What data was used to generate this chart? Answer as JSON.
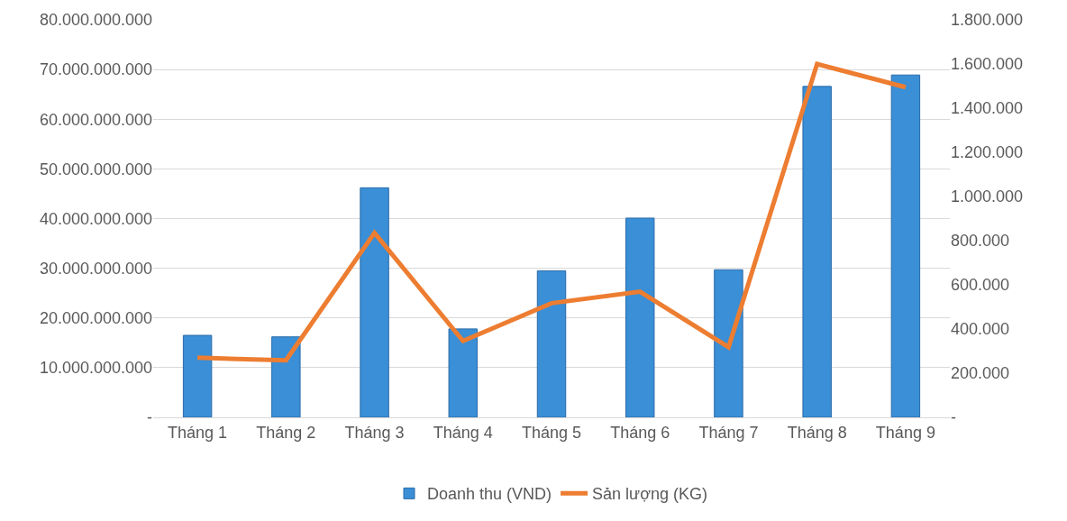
{
  "chart_data": {
    "type": "bar",
    "categories": [
      "Tháng 1",
      "Tháng 2",
      "Tháng 3",
      "Tháng 4",
      "Tháng 5",
      "Tháng 6",
      "Tháng 7",
      "Tháng 8",
      "Tháng 9"
    ],
    "series": [
      {
        "name": "Doanh thu (VND)",
        "color": "#3a8fd6",
        "values": [
          16500000000,
          16200000000,
          46200000000,
          17800000000,
          29500000000,
          40100000000,
          29700000000,
          66600000000,
          68900000000
        ]
      },
      {
        "name": "Sản lượng (KG)",
        "type": "line",
        "axis": "y2",
        "color": "#ed7d31",
        "values": [
          270000,
          258000,
          835000,
          346000,
          517000,
          569000,
          318000,
          1600000,
          1495000
        ]
      }
    ],
    "ylim": [
      0,
      80000000000
    ],
    "yticks": [
      {
        "value": 0,
        "label": "-"
      },
      {
        "value": 10000000000,
        "label": "10.000.000.000"
      },
      {
        "value": 20000000000,
        "label": "20.000.000.000"
      },
      {
        "value": 30000000000,
        "label": "30.000.000.000"
      },
      {
        "value": 40000000000,
        "label": "40.000.000.000"
      },
      {
        "value": 50000000000,
        "label": "50.000.000.000"
      },
      {
        "value": 60000000000,
        "label": "60.000.000.000"
      },
      {
        "value": 70000000000,
        "label": "70.000.000.000"
      },
      {
        "value": 80000000000,
        "label": "80.000.000.000"
      }
    ],
    "y2lim": [
      0,
      1800000
    ],
    "y2ticks": [
      {
        "value": 0,
        "label": "-"
      },
      {
        "value": 200000,
        "label": "200.000"
      },
      {
        "value": 400000,
        "label": "400.000"
      },
      {
        "value": 600000,
        "label": "600.000"
      },
      {
        "value": 800000,
        "label": "800.000"
      },
      {
        "value": 1000000,
        "label": "1.000.000"
      },
      {
        "value": 1200000,
        "label": "1.200.000"
      },
      {
        "value": 1400000,
        "label": "1.400.000"
      },
      {
        "value": 1600000,
        "label": "1.600.000"
      },
      {
        "value": 1800000,
        "label": "1.800.000"
      }
    ],
    "grid": "y",
    "legend": "bottom",
    "marker": "none",
    "line_style": "solid"
  }
}
